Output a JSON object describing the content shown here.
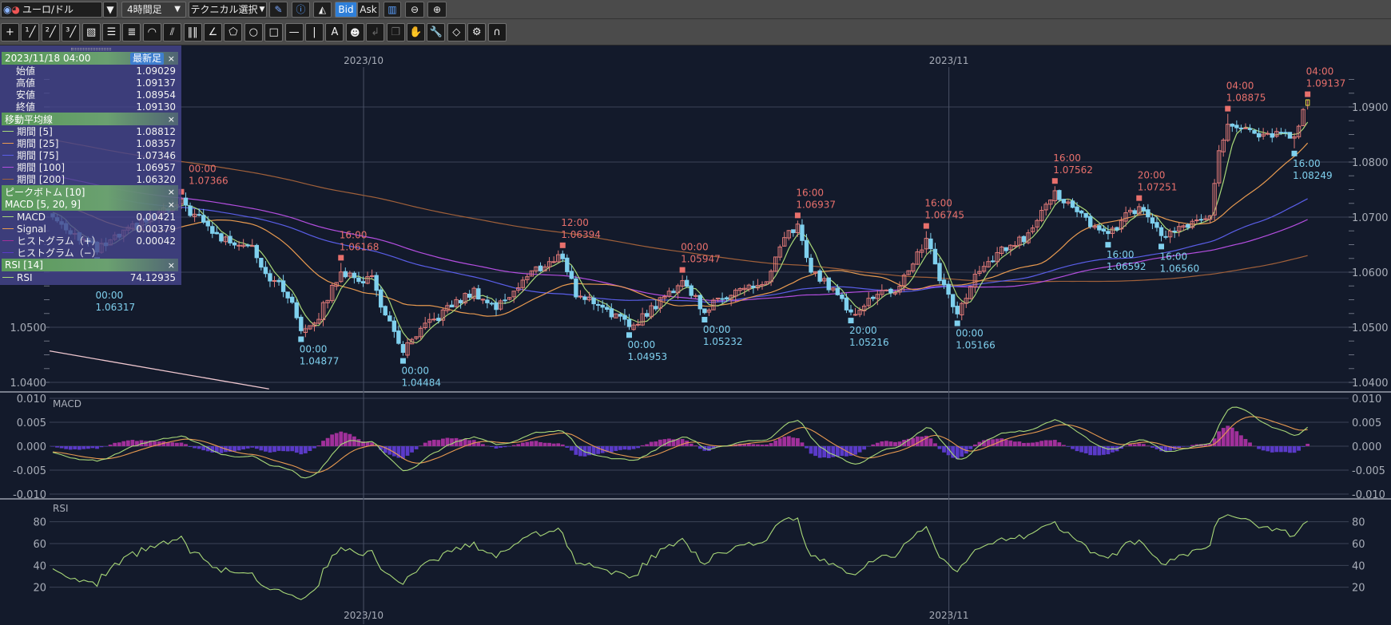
{
  "toolbar": {
    "symbol": "ユーロ/ドル",
    "timeframe": "4時間足",
    "technical": "テクニカル選択",
    "bid": "Bid",
    "ask": "Ask",
    "active_side": "Bid",
    "icons": [
      "pencil-icon",
      "info-icon",
      "mountain-chart-icon",
      "chart-display-icon",
      "zoom-out-icon",
      "zoom-in-icon"
    ]
  },
  "drawing_tools": [
    {
      "name": "crosshair",
      "glyph": "+"
    },
    {
      "name": "line-1",
      "glyph": "¹╱"
    },
    {
      "name": "line-2",
      "glyph": "²╱"
    },
    {
      "name": "line-3",
      "glyph": "³╱"
    },
    {
      "name": "ruler",
      "glyph": "▧"
    },
    {
      "name": "horizontal-lines",
      "glyph": "☰"
    },
    {
      "name": "multi-lines",
      "glyph": "≣"
    },
    {
      "name": "arc",
      "glyph": "◠"
    },
    {
      "name": "fan",
      "glyph": "⫽"
    },
    {
      "name": "vertical-lines",
      "glyph": "‖‖"
    },
    {
      "name": "angle",
      "glyph": "∠"
    },
    {
      "name": "pentagon",
      "glyph": "⬠"
    },
    {
      "name": "circle",
      "glyph": "○"
    },
    {
      "name": "rectangle",
      "glyph": "□"
    },
    {
      "name": "horizontal-line",
      "glyph": "—"
    },
    {
      "name": "vertical-line",
      "glyph": "|"
    },
    {
      "name": "text",
      "glyph": "A"
    },
    {
      "name": "icon-stamp",
      "glyph": "☻"
    },
    {
      "name": "undo",
      "glyph": "↲",
      "disabled": true
    },
    {
      "name": "copy",
      "glyph": "❐",
      "disabled": true
    },
    {
      "name": "hand",
      "glyph": "✋",
      "disabled": true
    },
    {
      "name": "wrench",
      "glyph": "🔧"
    },
    {
      "name": "eraser",
      "glyph": "◇"
    },
    {
      "name": "settings-list",
      "glyph": "⚙"
    },
    {
      "name": "magnet",
      "glyph": "∩"
    }
  ],
  "info_panel": {
    "datetime": "2023/11/18 04:00",
    "latest_button": "最新足",
    "close": "×",
    "ohlc": [
      {
        "label": "始値",
        "value": "1.09029"
      },
      {
        "label": "高値",
        "value": "1.09137"
      },
      {
        "label": "安値",
        "value": "1.08954"
      },
      {
        "label": "終値",
        "value": "1.09130"
      }
    ],
    "ma_title": "移動平均線",
    "ma": [
      {
        "label": "期間 [5]",
        "value": "1.08812",
        "color": "#a8d878"
      },
      {
        "label": "期間 [25]",
        "value": "1.08357",
        "color": "#e89a50"
      },
      {
        "label": "期間 [75]",
        "value": "1.07346",
        "color": "#5a5ee8"
      },
      {
        "label": "期間 [100]",
        "value": "1.06957",
        "color": "#b44ee0"
      },
      {
        "label": "期間 [200]",
        "value": "1.06320",
        "color": "#a0603a"
      }
    ],
    "peak_title": "ピークボトム [10]",
    "macd_title": "MACD [5, 20, 9]",
    "macd": [
      {
        "label": "MACD",
        "value": "0.00421",
        "color": "#a8d878"
      },
      {
        "label": "Signal",
        "value": "0.00379",
        "color": "#e89a50"
      },
      {
        "label": "ヒストグラム（+）",
        "value": "0.00042",
        "color": "#a0309a"
      },
      {
        "label": "ヒストグラム（−）",
        "value": "",
        "color": "#5a3ac8"
      }
    ],
    "rsi_title": "RSI [14]",
    "rsi": [
      {
        "label": "RSI",
        "value": "74.12935",
        "color": "#a8d878"
      }
    ]
  },
  "chart_data": {
    "type": "candlestick",
    "instrument": "ユーロ/ドル",
    "timeframe": "4時間足",
    "month_labels": [
      {
        "label": "2023/10",
        "bar": 71
      },
      {
        "label": "2023/11",
        "bar": 203
      }
    ],
    "price_axis": {
      "ticks": [
        "1.0900",
        "1.0800",
        "1.0700",
        "1.0600",
        "1.0500",
        "1.0400"
      ],
      "range": [
        1.0388,
        1.098
      ]
    },
    "price_path": [
      [
        0,
        1.07
      ],
      [
        10,
        1.064
      ],
      [
        20,
        1.069
      ],
      [
        29,
        1.0725
      ],
      [
        38,
        1.066
      ],
      [
        45,
        1.065
      ],
      [
        48,
        1.0598
      ],
      [
        53,
        1.056
      ],
      [
        56,
        1.0495
      ],
      [
        60,
        1.052
      ],
      [
        65,
        1.0605
      ],
      [
        68,
        1.0585
      ],
      [
        72,
        1.059
      ],
      [
        75,
        1.052
      ],
      [
        79,
        1.0455
      ],
      [
        84,
        1.05
      ],
      [
        90,
        1.054
      ],
      [
        95,
        1.0565
      ],
      [
        100,
        1.0535
      ],
      [
        108,
        1.06
      ],
      [
        115,
        1.063
      ],
      [
        118,
        1.056
      ],
      [
        124,
        1.054
      ],
      [
        130,
        1.05
      ],
      [
        136,
        1.054
      ],
      [
        142,
        1.0585
      ],
      [
        147,
        1.053
      ],
      [
        153,
        1.0565
      ],
      [
        161,
        1.058
      ],
      [
        165,
        1.066
      ],
      [
        168,
        1.0685
      ],
      [
        171,
        1.06
      ],
      [
        176,
        1.057
      ],
      [
        180,
        1.0525
      ],
      [
        186,
        1.056
      ],
      [
        191,
        1.057
      ],
      [
        194,
        1.062
      ],
      [
        197,
        1.066
      ],
      [
        200,
        1.059
      ],
      [
        204,
        1.0525
      ],
      [
        208,
        1.059
      ],
      [
        214,
        1.064
      ],
      [
        220,
        1.0665
      ],
      [
        223,
        1.072
      ],
      [
        226,
        1.0745
      ],
      [
        232,
        1.07
      ],
      [
        238,
        1.0668
      ],
      [
        242,
        1.07
      ],
      [
        245,
        1.0715
      ],
      [
        250,
        1.0665
      ],
      [
        255,
        1.068
      ],
      [
        261,
        1.07
      ],
      [
        263,
        1.082
      ],
      [
        265,
        1.087
      ],
      [
        268,
        1.0868
      ],
      [
        272,
        1.084
      ],
      [
        276,
        1.0855
      ],
      [
        280,
        1.084
      ],
      [
        282,
        1.0895
      ],
      [
        283,
        1.0913
      ]
    ],
    "last_bar": {
      "open": 1.09029,
      "high": 1.09137,
      "low": 1.08954,
      "close": 1.0913
    },
    "peaks_bottoms": [
      {
        "type": "bottom",
        "bar": 10,
        "time": "00:00",
        "price": "1.06317"
      },
      {
        "type": "peak",
        "bar": 29,
        "time": "00:00",
        "price": "1.07366"
      },
      {
        "type": "bottom",
        "bar": 56,
        "time": "00:00",
        "price": "1.04877"
      },
      {
        "type": "peak",
        "bar": 65,
        "time": "16:00",
        "price": "1.06168"
      },
      {
        "type": "bottom",
        "bar": 79,
        "time": "00:00",
        "price": "1.04484"
      },
      {
        "type": "peak",
        "bar": 115,
        "time": "12:00",
        "price": "1.06394"
      },
      {
        "type": "bottom",
        "bar": 130,
        "time": "00:00",
        "price": "1.04953"
      },
      {
        "type": "peak",
        "bar": 142,
        "time": "00:00",
        "price": "1.05947"
      },
      {
        "type": "bottom",
        "bar": 147,
        "time": "00:00",
        "price": "1.05232"
      },
      {
        "type": "peak",
        "bar": 168,
        "time": "16:00",
        "price": "1.06937"
      },
      {
        "type": "bottom",
        "bar": 180,
        "time": "20:00",
        "price": "1.05216"
      },
      {
        "type": "peak",
        "bar": 197,
        "time": "16:00",
        "price": "1.06745"
      },
      {
        "type": "bottom",
        "bar": 204,
        "time": "00:00",
        "price": "1.05166"
      },
      {
        "type": "peak",
        "bar": 226,
        "time": "16:00",
        "price": "1.07562"
      },
      {
        "type": "bottom",
        "bar": 238,
        "time": "16:00",
        "price": "1.06592"
      },
      {
        "type": "peak",
        "bar": 245,
        "time": "20:00",
        "price": "1.07251"
      },
      {
        "type": "bottom",
        "bar": 250,
        "time": "16:00",
        "price": "1.06560"
      },
      {
        "type": "peak",
        "bar": 265,
        "time": "04:00",
        "price": "1.08875"
      },
      {
        "type": "bottom",
        "bar": 280,
        "time": "16:00",
        "price": "1.08249"
      },
      {
        "type": "peak",
        "bar": 283,
        "time": "04:00",
        "price": "1.09137"
      }
    ],
    "trendline": {
      "from": {
        "bar": 0,
        "price": 1.0457
      },
      "to": {
        "bar": 49.5,
        "price": 1.0388
      },
      "color": "#f0c8d0"
    },
    "macd_panel": {
      "title": "MACD",
      "ticks": [
        "0.010",
        "0.005",
        "0.000",
        "-0.005",
        "-0.010"
      ],
      "range": [
        -0.01,
        0.01
      ]
    },
    "rsi_panel": {
      "title": "RSI",
      "ticks": [
        "80",
        "60",
        "40",
        "20"
      ],
      "range": [
        0,
        100
      ]
    },
    "colors": {
      "up": "#e07a78",
      "down": "#7fd0ee",
      "peak": "#e8706c",
      "bottom": "#7fd0ee",
      "hist_pos": "#a0309a",
      "hist_neg": "#5a3ac8",
      "macd": "#a8d878",
      "signal": "#e89a50",
      "rsi": "#a8d878",
      "last_bar": "#f0e040"
    }
  }
}
